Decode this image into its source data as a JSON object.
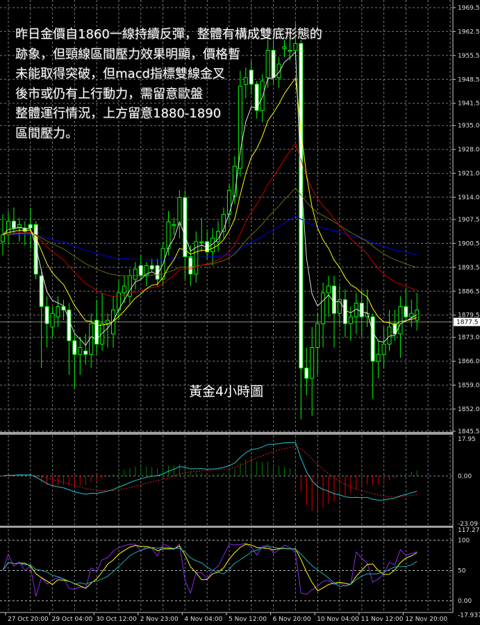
{
  "annotation": {
    "lines": [
      "昨日金價自1860一線持續反彈，整體有構成雙底形態的",
      "跡象，但頸線區間壓力效果明顯，價格暫",
      "未能取得突破，但macd指標雙線金叉",
      "後市或仍有上行動力，需留意歐盤",
      "整體運行情況，上方留意1880-1890",
      "區間壓力。"
    ],
    "caption": "黃金4小時圖"
  },
  "colors": {
    "background": "#000000",
    "bull_candle": "#00ff00",
    "bear_candle_body": "#ffffff",
    "ma_fast": "#e0e0e0",
    "ma_2": "#ffff00",
    "ma_3": "#cc0000",
    "ma_4": "#6b6b10",
    "ma_5": "#0000ee",
    "macd_line": "#20c8d0",
    "macd_signal": "#e02020",
    "hist_up": "#008000",
    "hist_down": "#e00000",
    "osc_fast": "#8a2be2",
    "osc_mid": "#ffff00",
    "osc_slow": "#20b0b0"
  },
  "chart_data": [
    {
      "type": "candlestick",
      "title": "",
      "current_price": "1877.5",
      "ylim": [
        1845.5,
        1969.5
      ],
      "grid": true,
      "y_ticks": [
        "1969.5",
        "1962.5",
        "1955.5",
        "1948.5",
        "1941.5",
        "1935.0",
        "1928.0",
        "1921.0",
        "1914.0",
        "1907.5",
        "1900.5",
        "1893.5",
        "1886.5",
        "1879.5",
        "1873.0",
        "1866.0",
        "1859.0",
        "1852.0",
        "1845.5"
      ],
      "x_ticks": [
        "27 Oct 20:00",
        "29 Oct 04:00",
        "30 Oct 12:00",
        "2 Nov 23:00",
        "4 Nov 04:00",
        "5 Nov 12:00",
        "6 Nov 20:00",
        "10 Nov 04:00",
        "11 Nov 12:00",
        "12 Nov 20:00"
      ],
      "ohlc": [
        [
          1901,
          1909,
          1897,
          1903
        ],
        [
          1903,
          1910,
          1900,
          1907
        ],
        [
          1907,
          1911,
          1903,
          1905
        ],
        [
          1905,
          1908,
          1901,
          1906
        ],
        [
          1905,
          1907,
          1900,
          1904
        ],
        [
          1906,
          1911,
          1899,
          1905
        ],
        [
          1906,
          1907,
          1890,
          1891.5
        ],
        [
          1891,
          1893,
          1864,
          1882
        ],
        [
          1882,
          1885,
          1870,
          1877
        ],
        [
          1876,
          1882,
          1873,
          1880
        ],
        [
          1879,
          1885,
          1876,
          1882
        ],
        [
          1882,
          1884,
          1878,
          1881
        ],
        [
          1881,
          1883,
          1862,
          1872
        ],
        [
          1872,
          1874,
          1858,
          1868
        ],
        [
          1868,
          1873,
          1862,
          1870
        ],
        [
          1869,
          1874,
          1865,
          1868
        ],
        [
          1868,
          1880,
          1864,
          1877
        ],
        [
          1878,
          1884,
          1868,
          1871
        ],
        [
          1871,
          1886,
          1869,
          1877
        ],
        [
          1877,
          1880,
          1870,
          1878
        ],
        [
          1874,
          1885,
          1870,
          1881
        ],
        [
          1881,
          1890,
          1878,
          1886
        ],
        [
          1886,
          1891,
          1883,
          1888
        ],
        [
          1885,
          1893,
          1883,
          1891
        ],
        [
          1890,
          1895,
          1887,
          1893
        ],
        [
          1894,
          1897,
          1890,
          1891
        ],
        [
          1891,
          1895,
          1888,
          1894
        ],
        [
          1894,
          1896,
          1892,
          1893
        ],
        [
          1894,
          1896,
          1888,
          1890
        ],
        [
          1890,
          1901,
          1888,
          1899
        ],
        [
          1899,
          1910,
          1897,
          1906.8
        ],
        [
          1906,
          1908,
          1903,
          1906
        ],
        [
          1906,
          1916,
          1902,
          1913.9
        ],
        [
          1913.9,
          1916,
          1890,
          1896.6
        ],
        [
          1896.6,
          1900,
          1888,
          1891.5
        ],
        [
          1891.5,
          1904,
          1889,
          1901
        ],
        [
          1901,
          1908,
          1898,
          1901
        ],
        [
          1901,
          1904,
          1896,
          1898
        ],
        [
          1898,
          1905,
          1894,
          1902
        ],
        [
          1901,
          1907,
          1898,
          1904
        ],
        [
          1904,
          1911,
          1902,
          1909
        ],
        [
          1909,
          1918,
          1906,
          1916
        ],
        [
          1914.3,
          1926,
          1912,
          1923.1
        ],
        [
          1922.5,
          1951,
          1920,
          1946.5
        ],
        [
          1947,
          1952,
          1943,
          1949
        ],
        [
          1951.2,
          1954,
          1944,
          1947.1
        ],
        [
          1947.1,
          1948,
          1937,
          1939.4
        ],
        [
          1939.4,
          1950,
          1936,
          1948
        ],
        [
          1949,
          1962,
          1946,
          1957
        ],
        [
          1957,
          1960,
          1947,
          1949
        ],
        [
          1949,
          1955,
          1946,
          1953
        ],
        [
          1957.5,
          1960,
          1955,
          1958
        ],
        [
          1957,
          1961,
          1954,
          1957
        ],
        [
          1957,
          1965,
          1955,
          1959
        ],
        [
          1959,
          1960,
          1849,
          1864
        ],
        [
          1864,
          1870,
          1856,
          1861
        ],
        [
          1861,
          1876,
          1850,
          1870
        ],
        [
          1870,
          1880,
          1862,
          1877
        ],
        [
          1877,
          1889,
          1870,
          1886
        ],
        [
          1886,
          1891,
          1879,
          1888
        ],
        [
          1888,
          1891,
          1870,
          1880
        ],
        [
          1880,
          1888,
          1876,
          1884
        ],
        [
          1884,
          1887,
          1873,
          1877
        ],
        [
          1877,
          1882,
          1872,
          1879
        ],
        [
          1879,
          1886,
          1874,
          1883
        ],
        [
          1883,
          1887,
          1873,
          1879
        ],
        [
          1879,
          1887,
          1876,
          1880
        ],
        [
          1879,
          1880,
          1855,
          1866
        ],
        [
          1866,
          1872,
          1861,
          1868
        ],
        [
          1868,
          1876,
          1864,
          1871
        ],
        [
          1871,
          1881,
          1869,
          1876
        ],
        [
          1877,
          1881,
          1872,
          1874
        ],
        [
          1874,
          1885,
          1867,
          1882
        ],
        [
          1882,
          1887,
          1878,
          1879
        ],
        [
          1879,
          1884,
          1876,
          1880
        ],
        [
          1878,
          1886,
          1875,
          1881
        ]
      ]
    },
    {
      "type": "line",
      "title": "",
      "ylim": [
        -23.09,
        17.95
      ],
      "y_ticks": [
        "17.95",
        "0.00",
        "-23.09"
      ]
    },
    {
      "type": "line",
      "title": "",
      "ylim": [
        -17.937,
        117.279
      ],
      "y_ticks": [
        "117.279",
        "100",
        "50",
        "0.00",
        "-17.937"
      ]
    }
  ]
}
